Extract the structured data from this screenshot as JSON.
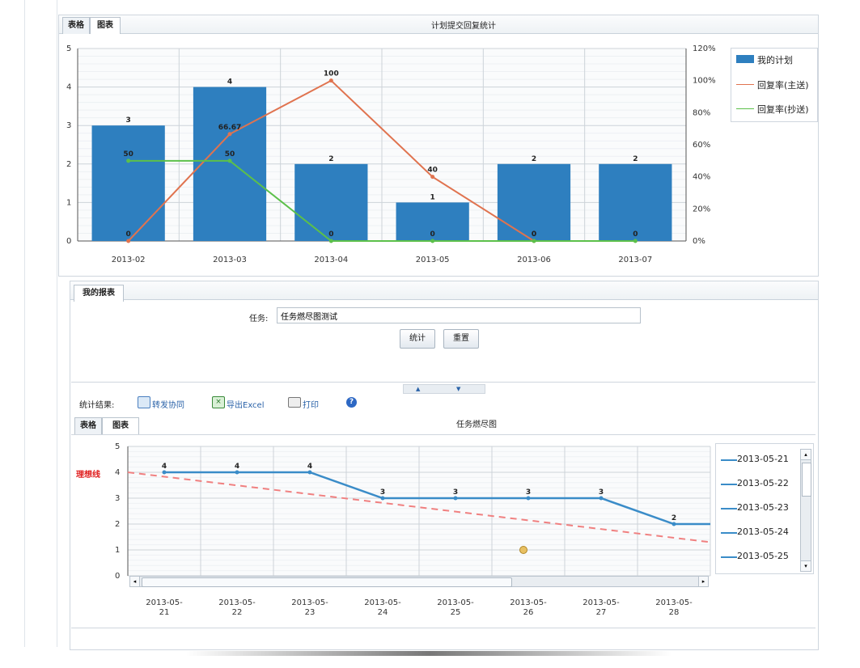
{
  "top": {
    "tabs": [
      "表格",
      "图表"
    ],
    "title": "计划提交回复统计",
    "legend": [
      "我的计划",
      "回复率(主送)",
      "回复率(抄送)"
    ]
  },
  "chart_data": [
    {
      "type": "bar",
      "title": "计划提交回复统计",
      "categories": [
        "2013-02",
        "2013-03",
        "2013-04",
        "2013-05",
        "2013-06",
        "2013-07"
      ],
      "ylim": [
        0,
        5
      ],
      "y2lim": [
        0,
        120
      ],
      "y_ticks": [
        "0",
        "1",
        "2",
        "3",
        "4",
        "5"
      ],
      "y2_ticks": [
        "0%",
        "20%",
        "40%",
        "60%",
        "80%",
        "100%",
        "120%"
      ],
      "series": [
        {
          "name": "我的计划",
          "kind": "bar",
          "axis": "left",
          "color": "#2e7fbf",
          "values": [
            3,
            4,
            2,
            1,
            2,
            2
          ],
          "labels": [
            "3",
            "4",
            "2",
            "1",
            "2",
            "2"
          ]
        },
        {
          "name": "回复率(主送)",
          "kind": "line",
          "axis": "right",
          "color": "#e0734f",
          "values": [
            0,
            66.67,
            100,
            40,
            0,
            null
          ],
          "labels": [
            "0",
            "66.67",
            "100",
            "40",
            "0",
            ""
          ]
        },
        {
          "name": "回复率(抄送)",
          "kind": "line",
          "axis": "right",
          "color": "#5cc04a",
          "values": [
            50,
            50,
            0,
            0,
            0,
            0
          ],
          "labels": [
            "50",
            "50",
            "0",
            "0",
            "0",
            "0"
          ]
        }
      ],
      "grid": true,
      "legend_position": "right"
    },
    {
      "type": "line",
      "title": "任务燃尽图",
      "categories": [
        "2013-05-21",
        "2013-05-22",
        "2013-05-23",
        "2013-05-24",
        "2013-05-25",
        "2013-05-26",
        "2013-05-27",
        "2013-05-28"
      ],
      "tick_labels": [
        [
          "2013-05-",
          "21"
        ],
        [
          "2013-05-",
          "22"
        ],
        [
          "2013-05-",
          "23"
        ],
        [
          "2013-05-",
          "24"
        ],
        [
          "2013-05-",
          "25"
        ],
        [
          "2013-05-",
          "26"
        ],
        [
          "2013-05-",
          "27"
        ],
        [
          "2013-05-",
          "28"
        ]
      ],
      "ylim": [
        0,
        5
      ],
      "y_ticks": [
        "0",
        "1",
        "2",
        "3",
        "4",
        "5"
      ],
      "series": [
        {
          "kind": "line",
          "color": "#3a8cc8",
          "values": [
            4,
            4,
            4,
            3,
            3,
            3,
            3,
            2
          ],
          "labels": [
            "4",
            "4",
            "4",
            "3",
            "3",
            "3",
            "3",
            "2"
          ]
        },
        {
          "name": "理想线",
          "kind": "dashed",
          "color": "#f08080",
          "start": 4,
          "end": 1.3
        }
      ],
      "ideal_label": "理想线",
      "grid": true,
      "legend_position": "right"
    }
  ],
  "bottom": {
    "report_tab": "我的报表",
    "task_label": "任务:",
    "task_value": "任务燃尽图测试",
    "stat_button": "统计",
    "reset_button": "重置",
    "result_label": "统计结果:",
    "toolbar": [
      "转发协同",
      "导出Excel",
      "打印"
    ],
    "tabs": [
      "表格",
      "图表"
    ],
    "chart_title": "任务燃尽图",
    "legend": [
      "2013-05-21",
      "2013-05-22",
      "2013-05-23",
      "2013-05-24",
      "2013-05-25"
    ]
  }
}
